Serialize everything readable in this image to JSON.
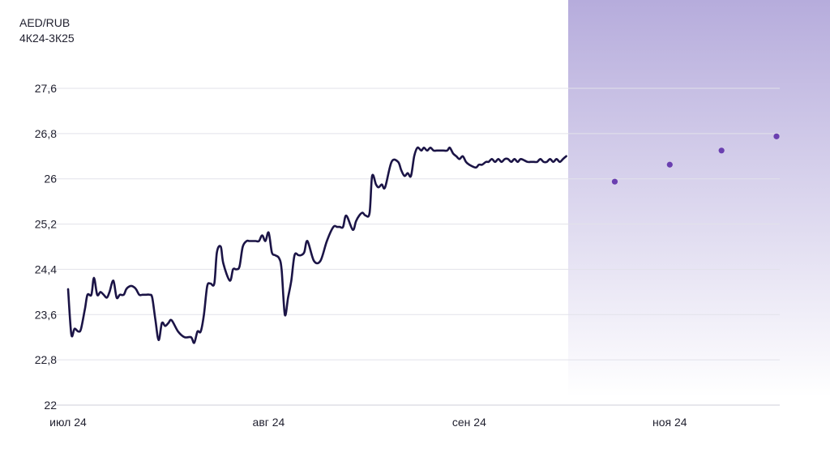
{
  "chart_data": {
    "type": "line",
    "title": "AED/RUB",
    "subtitle": "4К24-3К25",
    "xlabel": "",
    "ylabel": "",
    "ylim": [
      22,
      27.6
    ],
    "yticks": [
      "22",
      "22,8",
      "23,6",
      "24,4",
      "25,2",
      "26",
      "26,8",
      "27,6"
    ],
    "ytick_values": [
      22,
      22.8,
      23.6,
      24.4,
      25.2,
      26,
      26.8,
      27.6
    ],
    "xticks": [
      "июл 24",
      "авг 24",
      "сен 24",
      "ноя 24"
    ],
    "xtick_days": [
      0,
      31,
      62,
      93
    ],
    "xlim_days": [
      0,
      110
    ],
    "grid": true,
    "forecast_region_start_day": 77,
    "colors": {
      "line": "#1b1446",
      "forecast_point": "#6a3fb0",
      "forecast_shade": "#b8aedd",
      "grid": "#e2e2ea"
    },
    "series": [
      {
        "name": "",
        "kind": "line",
        "x": [
          0,
          0.5,
          1,
          1.6,
          2,
          2.6,
          3,
          3.6,
          4,
          4.5,
          5,
          5.5,
          6,
          6.4,
          7,
          7.5,
          8,
          8.6,
          9,
          9.5,
          10,
          10.5,
          11,
          11.5,
          12,
          12.6,
          13,
          13.5,
          14,
          14.5,
          15,
          15.5,
          16,
          17,
          18,
          19,
          19.5,
          20,
          20.5,
          21,
          21.5,
          22,
          22.6,
          23,
          23.6,
          24,
          25,
          25.5,
          26,
          26.5,
          27,
          27.6,
          28,
          28.5,
          29,
          29.5,
          30,
          30.5,
          31,
          31.5,
          32,
          32.6,
          33,
          33.5,
          34,
          34.5,
          35,
          35.6,
          36,
          36.5,
          37,
          38,
          39,
          40,
          41,
          41.6,
          42,
          42.5,
          43,
          44,
          44.5,
          45,
          45.5,
          46,
          46.6,
          47,
          47.6,
          48,
          48.5,
          49,
          50,
          51,
          51.5,
          52,
          52.5,
          53,
          53.5,
          54,
          54.6,
          55,
          55.5,
          56,
          56.5,
          57,
          57.5,
          58,
          58.6,
          59,
          59.5,
          60,
          60.5,
          61,
          61.5,
          62,
          63,
          63.5,
          64,
          64.6,
          65,
          65.5,
          66,
          66.5,
          67,
          67.5,
          68,
          68.5,
          69,
          69.5,
          70,
          71,
          71.5,
          72,
          72.5,
          73,
          73.5,
          74,
          74.5,
          75,
          75.5,
          76,
          76.5,
          77
        ],
        "y": [
          24.05,
          23.25,
          23.35,
          23.3,
          23.35,
          23.7,
          23.95,
          23.95,
          24.25,
          23.95,
          24,
          23.95,
          23.9,
          24,
          24.2,
          23.9,
          23.95,
          23.95,
          24.05,
          24.1,
          24.1,
          24.05,
          23.95,
          23.95,
          23.95,
          23.95,
          23.9,
          23.5,
          23.15,
          23.45,
          23.4,
          23.45,
          23.5,
          23.3,
          23.2,
          23.2,
          23.1,
          23.3,
          23.3,
          23.6,
          24.1,
          24.15,
          24.15,
          24.7,
          24.8,
          24.5,
          24.2,
          24.4,
          24.4,
          24.45,
          24.8,
          24.9,
          24.9,
          24.9,
          24.9,
          24.9,
          25,
          24.9,
          25.05,
          24.7,
          24.65,
          24.6,
          24.4,
          23.6,
          23.9,
          24.2,
          24.65,
          24.65,
          24.65,
          24.7,
          24.9,
          24.55,
          24.55,
          24.9,
          25.15,
          25.15,
          25.15,
          25.15,
          25.35,
          25.1,
          25.25,
          25.35,
          25.4,
          25.35,
          25.4,
          26.05,
          25.9,
          25.85,
          25.9,
          25.85,
          26.3,
          26.3,
          26.15,
          26.05,
          26.1,
          26.05,
          26.4,
          26.55,
          26.5,
          26.55,
          26.5,
          26.55,
          26.5,
          26.5,
          26.5,
          26.5,
          26.5,
          26.55,
          26.45,
          26.4,
          26.35,
          26.4,
          26.3,
          26.25,
          26.2,
          26.25,
          26.25,
          26.3,
          26.3,
          26.35,
          26.3,
          26.35,
          26.3,
          26.35,
          26.35,
          26.3,
          26.35,
          26.3,
          26.35,
          26.3,
          26.3,
          26.3,
          26.3,
          26.35,
          26.3,
          26.3,
          26.35,
          26.3,
          26.35,
          26.3,
          26.35,
          26.4
        ]
      },
      {
        "name": "",
        "kind": "points",
        "x": [
          84.5,
          93,
          101,
          109.5
        ],
        "y": [
          25.95,
          26.25,
          26.5,
          26.75
        ]
      }
    ]
  }
}
